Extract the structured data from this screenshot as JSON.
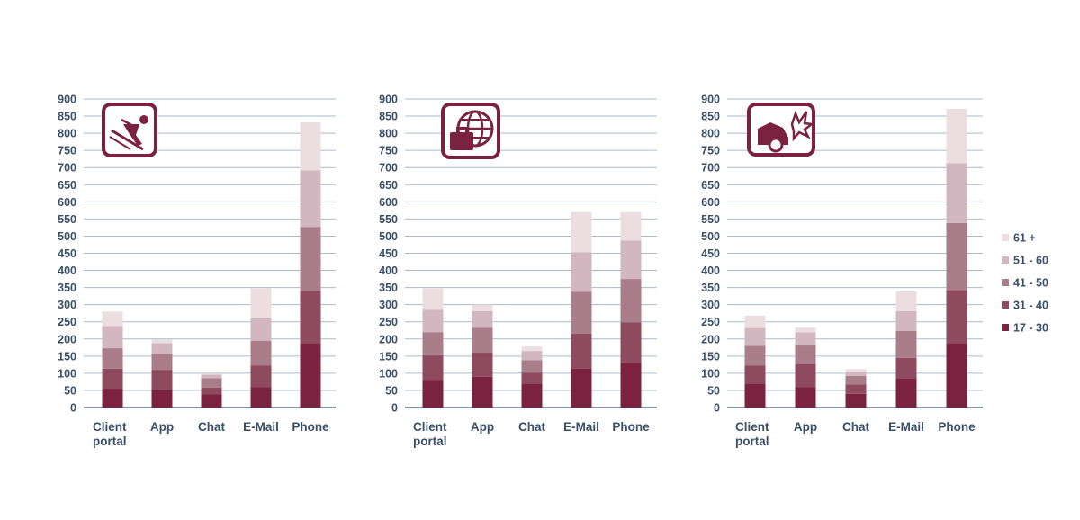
{
  "chart_data": [
    {
      "type": "bar",
      "stacked": true,
      "icon": "skier-icon",
      "categories": [
        "Client portal",
        "App",
        "Chat",
        "E-Mail",
        "Phone"
      ],
      "ylim": [
        0,
        900
      ],
      "yticks": [
        0,
        50,
        100,
        150,
        200,
        250,
        300,
        350,
        400,
        450,
        500,
        550,
        600,
        650,
        700,
        750,
        800,
        850,
        900
      ],
      "grid": true,
      "series": [
        {
          "name": "17 - 30",
          "values": [
            55,
            52,
            38,
            60,
            188
          ]
        },
        {
          "name": "31 - 40",
          "values": [
            58,
            58,
            20,
            63,
            152
          ]
        },
        {
          "name": "41 - 50",
          "values": [
            60,
            46,
            28,
            72,
            187
          ]
        },
        {
          "name": "51 - 60",
          "values": [
            65,
            32,
            10,
            65,
            165
          ]
        },
        {
          "name": "61 +",
          "values": [
            42,
            10,
            3,
            88,
            140
          ]
        }
      ]
    },
    {
      "type": "bar",
      "stacked": true,
      "icon": "globe-luggage-icon",
      "categories": [
        "Client portal",
        "App",
        "Chat",
        "E-Mail",
        "Phone"
      ],
      "ylim": [
        0,
        900
      ],
      "yticks": [
        0,
        50,
        100,
        150,
        200,
        250,
        300,
        350,
        400,
        450,
        500,
        550,
        600,
        650,
        700,
        750,
        800,
        850,
        900
      ],
      "grid": true,
      "series": [
        {
          "name": "17 - 30",
          "values": [
            80,
            90,
            70,
            113,
            130
          ]
        },
        {
          "name": "31 - 40",
          "values": [
            72,
            70,
            32,
            103,
            118
          ]
        },
        {
          "name": "41 - 50",
          "values": [
            68,
            73,
            36,
            122,
            127
          ]
        },
        {
          "name": "51 - 60",
          "values": [
            65,
            48,
            27,
            115,
            112
          ]
        },
        {
          "name": "61 +",
          "values": [
            63,
            19,
            13,
            117,
            83
          ]
        }
      ]
    },
    {
      "type": "bar",
      "stacked": true,
      "icon": "car-crash-icon",
      "categories": [
        "Client portal",
        "App",
        "Chat",
        "E-Mail",
        "Phone"
      ],
      "ylim": [
        0,
        900
      ],
      "yticks": [
        0,
        50,
        100,
        150,
        200,
        250,
        300,
        350,
        400,
        450,
        500,
        550,
        600,
        650,
        700,
        750,
        800,
        850,
        900
      ],
      "grid": true,
      "series": [
        {
          "name": "17 - 30",
          "values": [
            70,
            60,
            40,
            85,
            188
          ]
        },
        {
          "name": "31 - 40",
          "values": [
            52,
            67,
            27,
            60,
            155
          ]
        },
        {
          "name": "41 - 50",
          "values": [
            58,
            54,
            25,
            78,
            195
          ]
        },
        {
          "name": "51 - 60",
          "values": [
            52,
            38,
            12,
            58,
            175
          ]
        },
        {
          "name": "61 +",
          "values": [
            36,
            14,
            8,
            58,
            158
          ]
        }
      ]
    }
  ],
  "legend": {
    "placement": "right",
    "items": [
      "61 +",
      "51 - 60",
      "41 - 50",
      "31 - 40",
      "17 - 30"
    ]
  },
  "colors": {
    "17 - 30": "#7b2240",
    "31 - 40": "#8e4a5e",
    "41 - 50": "#aa7d8b",
    "51 - 60": "#d2b7c0",
    "61 +": "#ecdde1",
    "axis_text": "#3a5068",
    "grid": "#aabccc",
    "icon": "#7b2240"
  }
}
